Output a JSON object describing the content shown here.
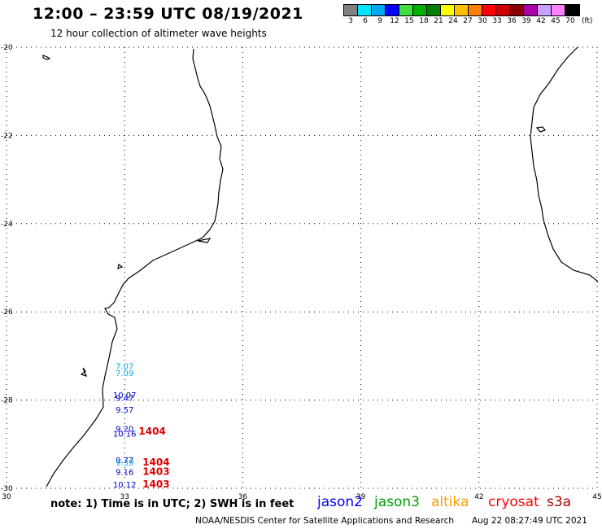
{
  "header": {
    "title": "12:00 – 23:59 UTC 08/19/2021",
    "subtitle": "12 hour collection of altimeter wave heights"
  },
  "legend": {
    "labels": [
      "3",
      "6",
      "9",
      "12",
      "15",
      "18",
      "21",
      "24",
      "27",
      "30",
      "33",
      "36",
      "39",
      "42",
      "45",
      "70"
    ],
    "unit": "(ft)",
    "colors": [
      "#808080",
      "#00e5ff",
      "#00a8f0",
      "#0000ff",
      "#40e040",
      "#00b000",
      "#008000",
      "#ffff00",
      "#ffc000",
      "#ff8000",
      "#ff0000",
      "#cc0000",
      "#880000",
      "#aa00aa",
      "#c8a0ff",
      "#ff80ff",
      "#000000"
    ]
  },
  "chart_data": {
    "type": "scatter",
    "xlabel": "",
    "ylabel": "",
    "xlim": [
      30,
      45
    ],
    "ylim": [
      -30,
      -20
    ],
    "x_ticks": [
      "30",
      "33",
      "36",
      "39",
      "42",
      "45"
    ],
    "y_ticks": [
      "-20",
      "-22",
      "-24",
      "-26",
      "-28",
      "-30"
    ],
    "grid": true,
    "points": [
      {
        "lon": 33.0,
        "lat": -27.3,
        "label": "7.07",
        "color": "#00a8f0",
        "size": 10
      },
      {
        "lon": 33.0,
        "lat": -27.45,
        "label": "7.09",
        "color": "#00a8f0",
        "size": 10
      },
      {
        "lon": 33.0,
        "lat": -27.95,
        "label": "10.07",
        "color": "#0000cc",
        "size": 10
      },
      {
        "lon": 33.0,
        "lat": -28.02,
        "label": "9.47",
        "color": "#0000cc",
        "size": 10
      },
      {
        "lon": 33.0,
        "lat": -28.28,
        "label": "9.57",
        "color": "#0000cc",
        "size": 10
      },
      {
        "lon": 33.0,
        "lat": -28.72,
        "label": "9.20",
        "color": "#0000cc",
        "size": 10
      },
      {
        "lon": 33.0,
        "lat": -28.83,
        "label": "10.16",
        "color": "#0000cc",
        "size": 10
      },
      {
        "lon": 33.0,
        "lat": -29.43,
        "label": "9.77",
        "color": "#0000cc",
        "size": 10
      },
      {
        "lon": 33.0,
        "lat": -29.48,
        "label": "9.39",
        "color": "#00a8f0",
        "size": 10
      },
      {
        "lon": 33.0,
        "lat": -29.7,
        "label": "9.16",
        "color": "#0000cc",
        "size": 10
      },
      {
        "lon": 33.0,
        "lat": -29.98,
        "label": "10.12",
        "color": "#0000cc",
        "size": 10
      },
      {
        "lon": 33.7,
        "lat": -28.78,
        "label": "1404",
        "color": "#e00000",
        "size": 12,
        "bold": true
      },
      {
        "lon": 33.8,
        "lat": -29.48,
        "label": "1404",
        "color": "#e00000",
        "size": 12,
        "bold": true
      },
      {
        "lon": 33.8,
        "lat": -29.7,
        "label": "1403",
        "color": "#e00000",
        "size": 12,
        "bold": true
      },
      {
        "lon": 33.8,
        "lat": -29.98,
        "label": "1403",
        "color": "#e00000",
        "size": 12,
        "bold": true
      }
    ]
  },
  "notes": {
    "text": "note:  1) Time is in UTC;  2) SWH is in feet"
  },
  "satellites": [
    {
      "name": "jason2",
      "color": "#0000ff"
    },
    {
      "name": "jason3",
      "color": "#00a000"
    },
    {
      "name": "altika",
      "color": "#ff9900"
    },
    {
      "name": "cryosat",
      "color": "#ff0000"
    },
    {
      "name": "s3a",
      "color": "#aa0000"
    }
  ],
  "footer": {
    "credit": "NOAA/NESDIS Center for Satellite Applications and Research",
    "timestamp": "Aug 22 08:27:49 UTC 2021"
  }
}
